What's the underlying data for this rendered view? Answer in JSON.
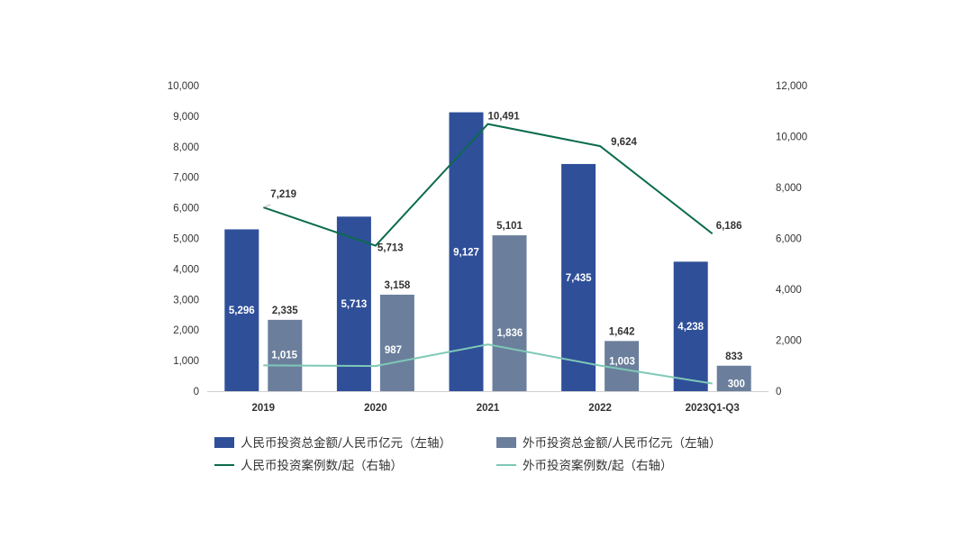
{
  "colors": {
    "rmb_amount": "#2f4f99",
    "fx_amount": "#6b7f9c",
    "rmb_cases": "#0b6b4e",
    "fx_cases": "#7ec8b7"
  },
  "chart_data": {
    "type": "bar",
    "categories": [
      "2019",
      "2020",
      "2021",
      "2022",
      "2023Q1-Q3"
    ],
    "series": [
      {
        "name": "人民币投资总金额/人民币亿元（左轴）",
        "type": "bar",
        "axis": "left",
        "values": [
          5296,
          5713,
          9127,
          7435,
          4238
        ],
        "labels": [
          "5,296",
          "5,713",
          "9,127",
          "7,435",
          "4,238"
        ]
      },
      {
        "name": "外币投资总金额/人民币亿元（左轴）",
        "type": "bar",
        "axis": "left",
        "values": [
          2335,
          3158,
          5101,
          1642,
          833
        ],
        "labels": [
          "2,335",
          "3,158",
          "5,101",
          "1,642",
          "833"
        ]
      },
      {
        "name": "人民币投资案例数/起（右轴）",
        "type": "line",
        "axis": "right",
        "values": [
          7219,
          5713,
          10491,
          9624,
          6186
        ],
        "labels": [
          "7,219",
          "5,713",
          "10,491",
          "9,624",
          "6,186"
        ]
      },
      {
        "name": "外币投资案例数/起（右轴）",
        "type": "line",
        "axis": "right",
        "values": [
          1015,
          987,
          1836,
          1003,
          300
        ],
        "labels": [
          "1,015",
          "987",
          "1,836",
          "1,003",
          "300"
        ]
      }
    ],
    "y_left": {
      "ylim": [
        0,
        10000
      ],
      "ticks": [
        0,
        1000,
        2000,
        3000,
        4000,
        5000,
        6000,
        7000,
        8000,
        9000,
        10000
      ],
      "tick_labels": [
        "0",
        "1,000",
        "2,000",
        "3,000",
        "4,000",
        "5,000",
        "6,000",
        "7,000",
        "8,000",
        "9,000",
        "10,000"
      ]
    },
    "y_right": {
      "ylim": [
        0,
        12000
      ],
      "ticks": [
        0,
        2000,
        4000,
        6000,
        8000,
        10000,
        12000
      ],
      "tick_labels": [
        "0",
        "2,000",
        "4,000",
        "6,000",
        "8,000",
        "10,000",
        "12,000"
      ]
    },
    "grid": false,
    "legend_position": "bottom"
  }
}
